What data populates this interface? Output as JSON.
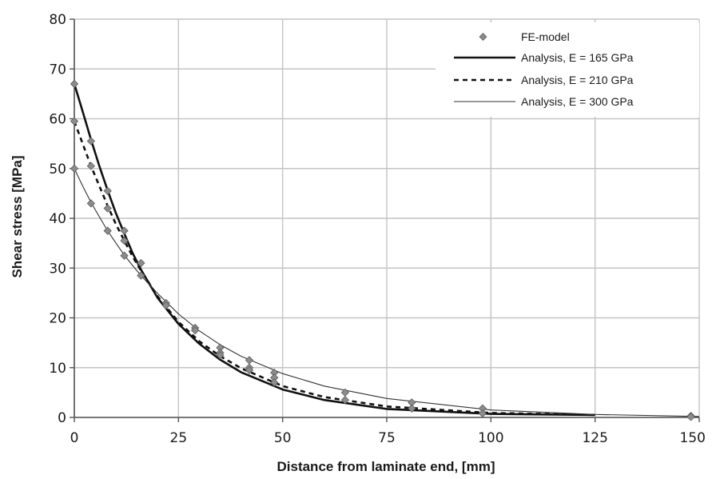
{
  "chart_data": {
    "type": "line",
    "title": "",
    "xlabel": "Distance from laminate end, [mm]",
    "ylabel": "Shear stress [MPa]",
    "xlim": [
      0,
      150
    ],
    "ylim": [
      0,
      80
    ],
    "x_ticks": [
      "0",
      "25",
      "50",
      "75",
      "100",
      "125",
      "150"
    ],
    "y_ticks": [
      "0",
      "10",
      "20",
      "30",
      "40",
      "50",
      "60",
      "70",
      "80"
    ],
    "grid": true,
    "legend_position": "top-right",
    "series": [
      {
        "name": "FE-model",
        "kind": "markers",
        "color": "#8c8c8c",
        "points": [
          [
            0,
            67
          ],
          [
            0,
            59.5
          ],
          [
            0,
            50
          ],
          [
            4,
            55.5
          ],
          [
            4,
            50.5
          ],
          [
            4,
            43
          ],
          [
            8,
            45.5
          ],
          [
            8,
            42
          ],
          [
            8,
            37.5
          ],
          [
            12,
            37.5
          ],
          [
            12,
            35.5
          ],
          [
            12,
            32.5
          ],
          [
            16,
            31
          ],
          [
            16,
            28.5
          ],
          [
            22,
            23
          ],
          [
            22,
            22.5
          ],
          [
            29,
            18
          ],
          [
            29,
            17.5
          ],
          [
            35,
            14
          ],
          [
            35,
            13
          ],
          [
            35,
            12.5
          ],
          [
            42,
            11.5
          ],
          [
            42,
            10
          ],
          [
            42,
            9.5
          ],
          [
            48,
            9
          ],
          [
            48,
            8
          ],
          [
            48,
            7
          ],
          [
            65,
            5
          ],
          [
            65,
            3.5
          ],
          [
            81,
            3
          ],
          [
            81,
            1.8
          ],
          [
            98,
            1.8
          ],
          [
            98,
            0.8
          ],
          [
            148,
            0.3
          ],
          [
            148,
            0.1
          ]
        ]
      },
      {
        "name": "Analysis, E = 165 GPa",
        "kind": "line",
        "style": "solid-thick",
        "color": "#111111",
        "x": [
          0,
          2,
          4,
          6,
          8,
          10,
          12,
          14,
          16,
          20,
          25,
          30,
          35,
          40,
          50,
          60,
          75,
          100,
          125
        ],
        "y": [
          67,
          61.5,
          55.8,
          50.5,
          45.6,
          41,
          36.9,
          33,
          29.7,
          24,
          18.8,
          14.8,
          11.6,
          9.1,
          5.6,
          3.5,
          1.7,
          0.7,
          0.5
        ]
      },
      {
        "name": "Analysis, E = 210 GPa",
        "kind": "line",
        "style": "dashed",
        "color": "#111111",
        "x": [
          0,
          2,
          4,
          6,
          8,
          10,
          12,
          14,
          16,
          20,
          25,
          30,
          35,
          40,
          50,
          60,
          75,
          100,
          125
        ],
        "y": [
          59.5,
          55,
          50.5,
          46.5,
          42.5,
          38.8,
          35.5,
          32.3,
          29.5,
          24.3,
          19.2,
          15.3,
          12.3,
          9.9,
          6.3,
          4.1,
          2.2,
          0.9,
          0.5
        ]
      },
      {
        "name": "Analysis, E = 300 GPa",
        "kind": "line",
        "style": "solid-thin",
        "color": "#333333",
        "x": [
          0,
          2,
          4,
          6,
          8,
          10,
          12,
          14,
          16,
          20,
          25,
          30,
          35,
          40,
          50,
          60,
          75,
          100,
          125,
          150
        ],
        "y": [
          50,
          46.5,
          43.2,
          40.3,
          37.5,
          35,
          32.6,
          30.5,
          28.5,
          24.9,
          20.8,
          17.4,
          14.6,
          12.3,
          8.8,
          6.3,
          3.8,
          1.5,
          0.6,
          0.2
        ]
      }
    ]
  }
}
